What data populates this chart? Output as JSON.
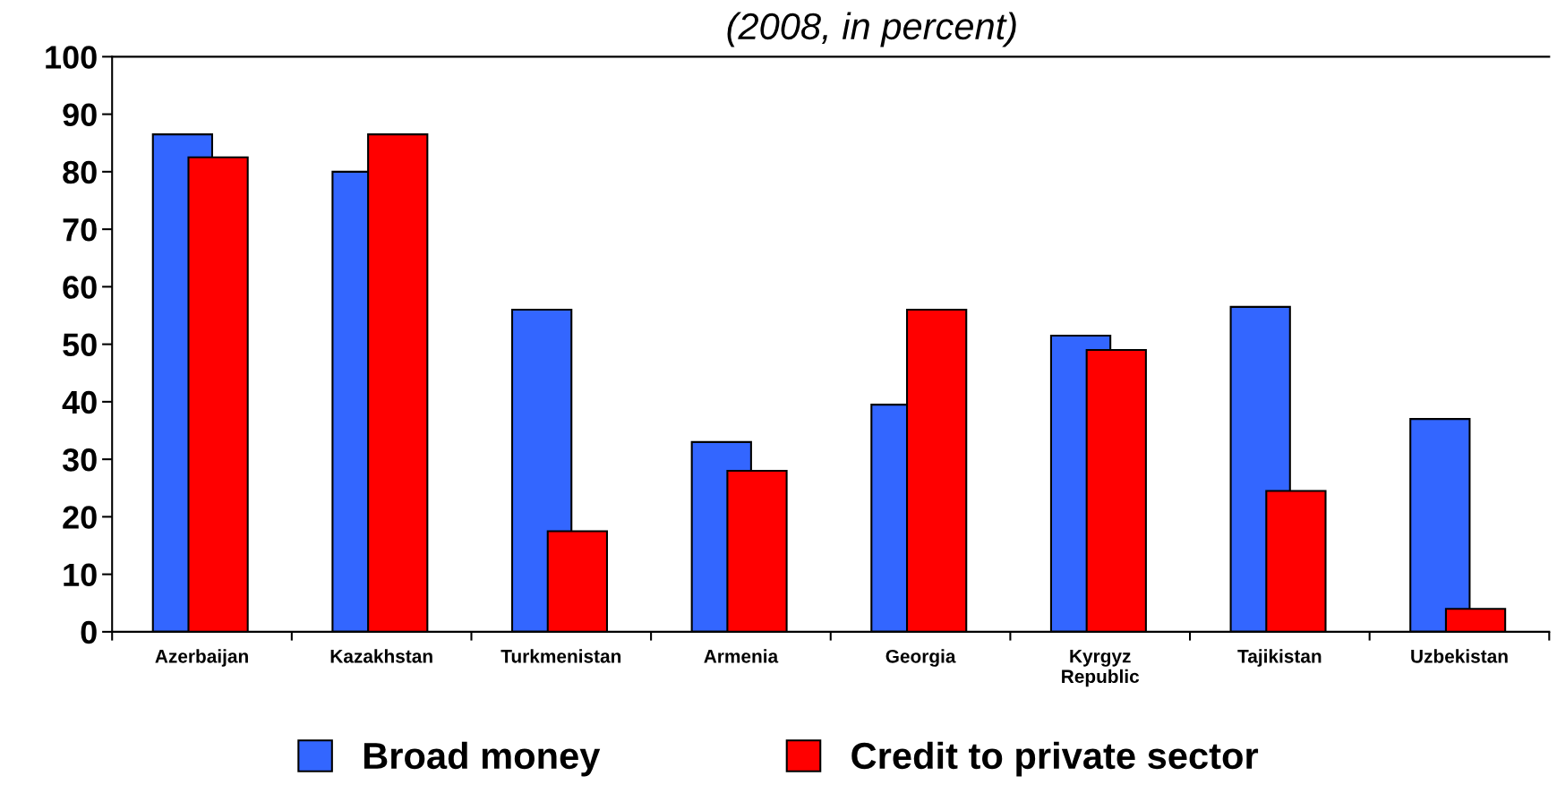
{
  "chart_data": {
    "type": "bar",
    "title": "(2008, in percent)",
    "categories": [
      "Azerbaijan",
      "Kazakhstan",
      "Turkmenistan",
      "Armenia",
      "Georgia",
      "Kyrgyz\nRepublic",
      "Tajikistan",
      "Uzbekistan"
    ],
    "series": [
      {
        "name": "Broad money",
        "color": "#3366ff",
        "values": [
          86.5,
          80,
          56,
          33,
          39.5,
          51.5,
          56.5,
          37
        ]
      },
      {
        "name": "Credit to private sector",
        "color": "#ff0000",
        "values": [
          82.5,
          86.5,
          17.5,
          28,
          56,
          49,
          24.5,
          4
        ]
      }
    ],
    "ylim": [
      0,
      100
    ],
    "yticks": [
      0,
      10,
      20,
      30,
      40,
      50,
      60,
      70,
      80,
      90,
      100
    ],
    "grid": false,
    "legend": "bottom"
  }
}
